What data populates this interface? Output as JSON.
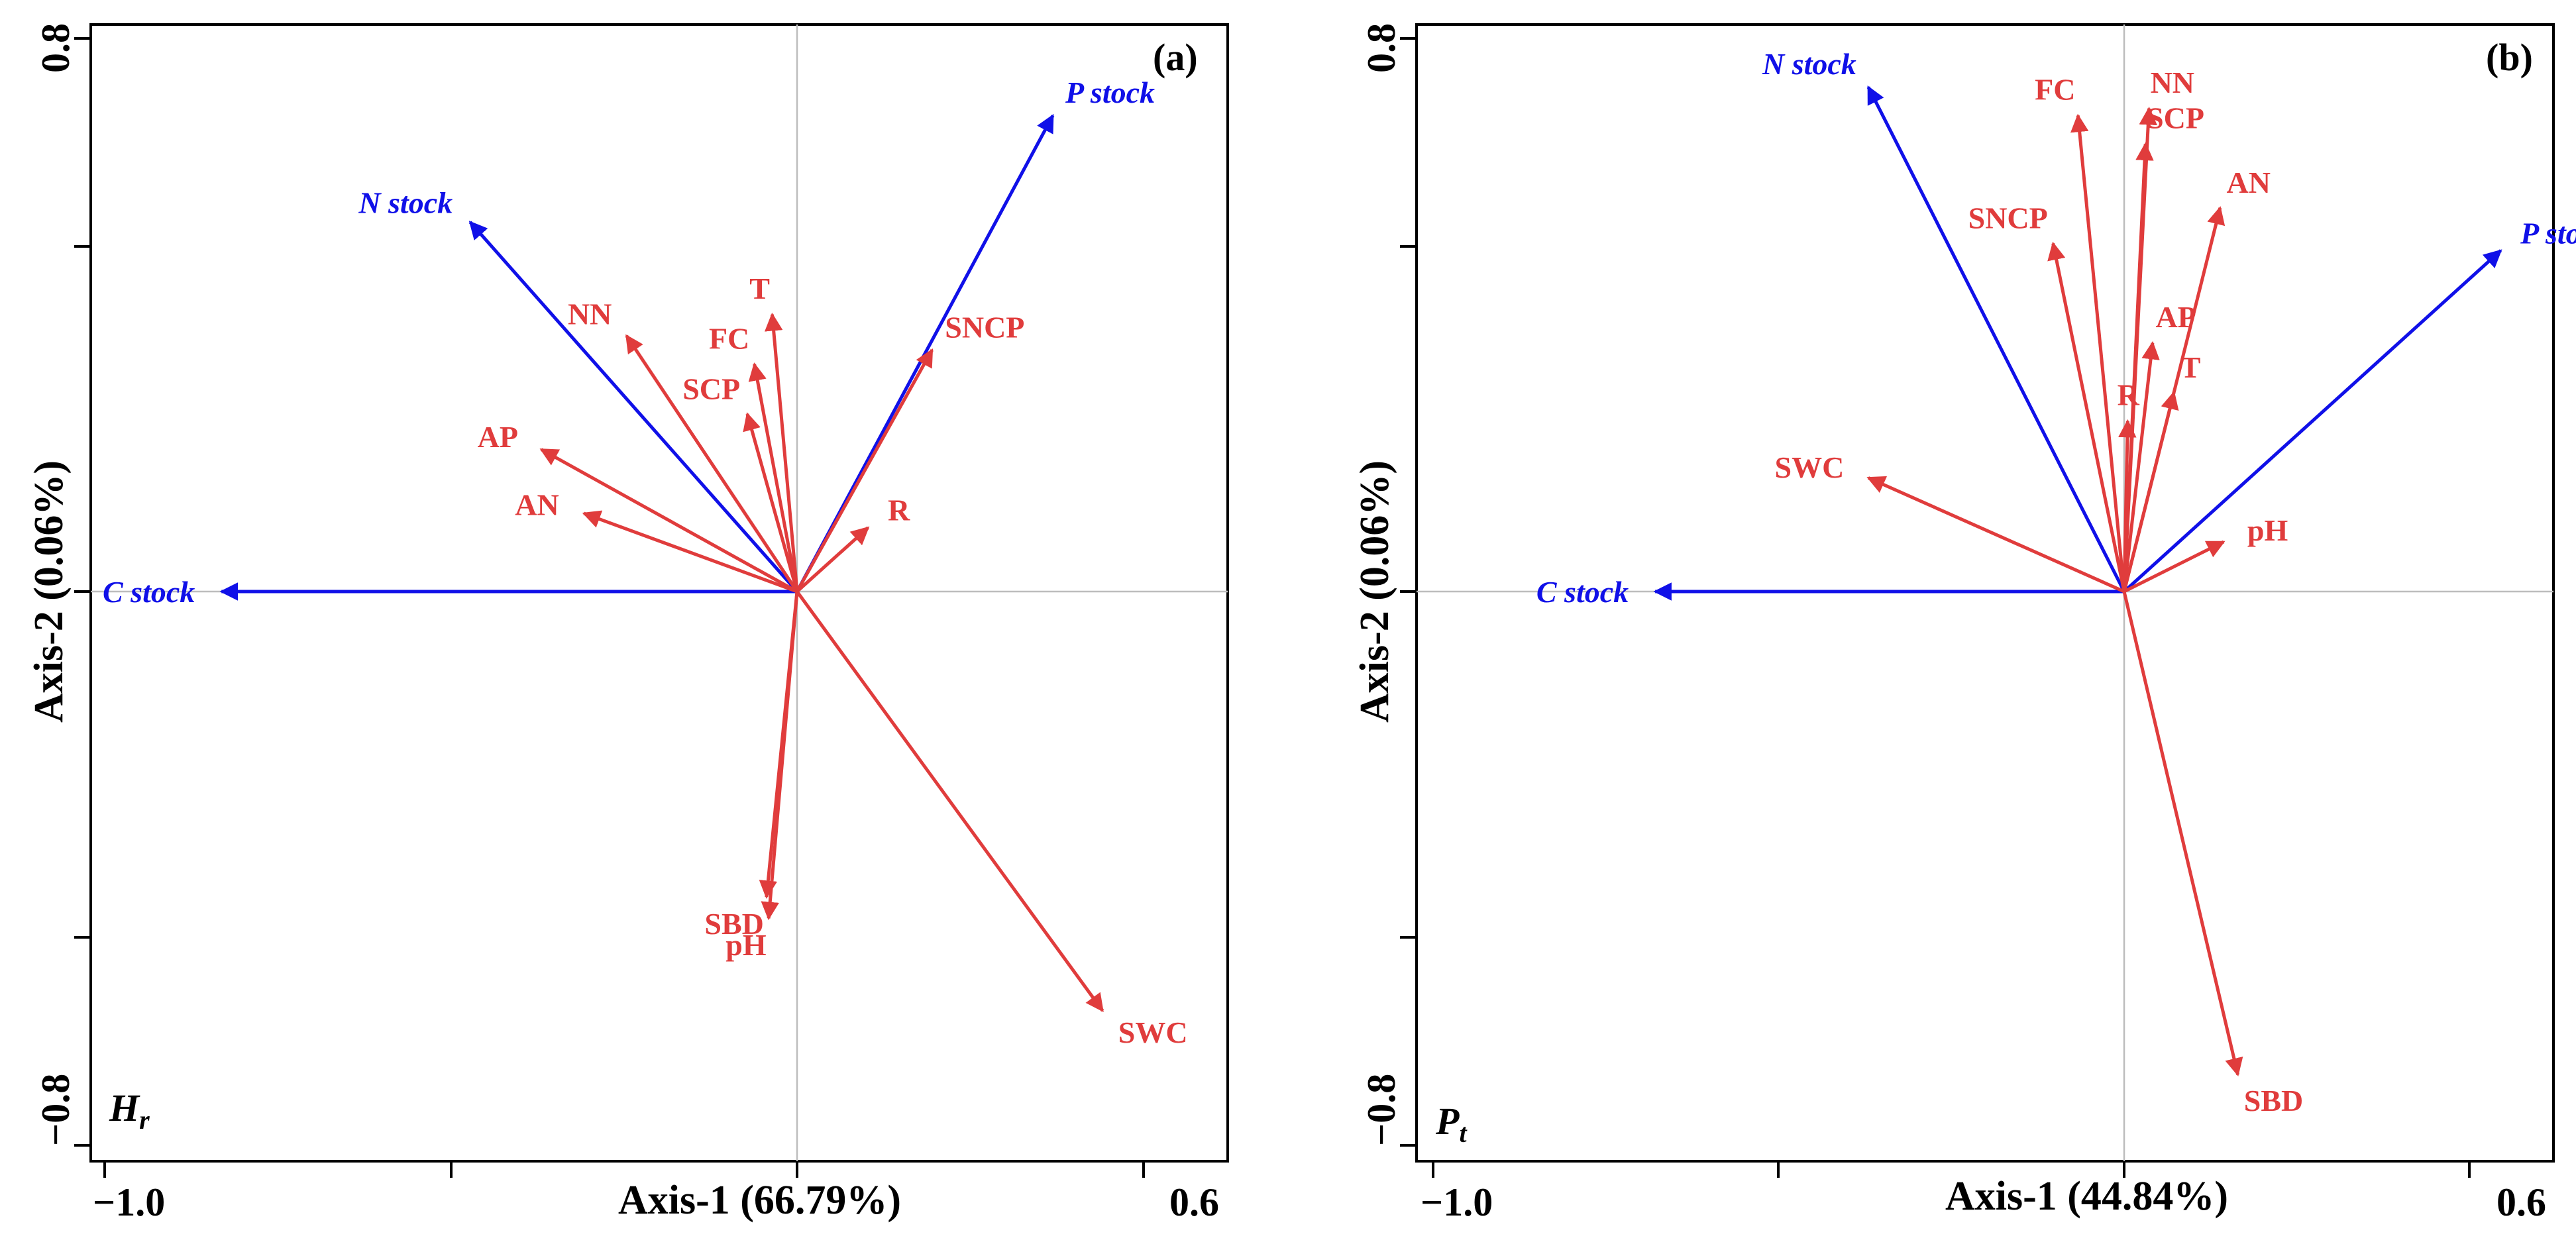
{
  "colors": {
    "response": "#1010e8",
    "explanatory": "#e03c3c",
    "frame": "#000000",
    "zero_line": "#bdbdbd"
  },
  "chart_data": [
    {
      "type": "biplot",
      "panel_label": "(a)",
      "corner_label": "H",
      "corner_label_sub": "r",
      "xlabel": "Axis-1 (66.79%)",
      "ylabel": "Axis-2 (0.06%)",
      "xlim": [
        -1.0,
        0.6
      ],
      "ylim": [
        -0.8,
        0.8
      ],
      "x_tick_labels": [
        "−1.0",
        "0.6"
      ],
      "y_tick_labels": [
        "0.8",
        "−0.8"
      ],
      "response_vectors": [
        {
          "name": "C stock",
          "x": -0.81,
          "y": 0.0
        },
        {
          "name": "N stock",
          "x": -0.46,
          "y": 0.52
        },
        {
          "name": "P stock",
          "x": 0.36,
          "y": 0.67
        }
      ],
      "explanatory_vectors": [
        {
          "name": "NN",
          "x": -0.24,
          "y": 0.36
        },
        {
          "name": "T",
          "x": -0.035,
          "y": 0.39
        },
        {
          "name": "FC",
          "x": -0.06,
          "y": 0.32
        },
        {
          "name": "SCP",
          "x": -0.07,
          "y": 0.25
        },
        {
          "name": "AP",
          "x": -0.36,
          "y": 0.2
        },
        {
          "name": "AN",
          "x": -0.3,
          "y": 0.11
        },
        {
          "name": "SNCP",
          "x": 0.19,
          "y": 0.34
        },
        {
          "name": "R",
          "x": 0.1,
          "y": 0.09
        },
        {
          "name": "SBD",
          "x": -0.043,
          "y": -0.43
        },
        {
          "name": "pH",
          "x": -0.04,
          "y": -0.46
        },
        {
          "name": "SWC",
          "x": 0.43,
          "y": -0.59
        }
      ]
    },
    {
      "type": "biplot",
      "panel_label": "(b)",
      "corner_label": "P",
      "corner_label_sub": "t",
      "xlabel": "Axis-1 (44.84%)",
      "ylabel": "Axis-2 (0.06%)",
      "xlim": [
        -1.0,
        0.6
      ],
      "ylim": [
        -0.8,
        0.8
      ],
      "x_tick_labels": [
        "−1.0",
        "0.6"
      ],
      "y_tick_labels": [
        "0.8",
        "−0.8"
      ],
      "response_vectors": [
        {
          "name": "C stock",
          "x": -0.66,
          "y": 0.0
        },
        {
          "name": "N stock",
          "x": -0.36,
          "y": 0.71
        },
        {
          "name": "P stock",
          "x": 0.53,
          "y": 0.48
        }
      ],
      "explanatory_vectors": [
        {
          "name": "FC",
          "x": -0.065,
          "y": 0.67
        },
        {
          "name": "NN",
          "x": 0.035,
          "y": 0.68
        },
        {
          "name": "SCP",
          "x": 0.03,
          "y": 0.63
        },
        {
          "name": "AN",
          "x": 0.135,
          "y": 0.54
        },
        {
          "name": "SNCP",
          "x": -0.1,
          "y": 0.49
        },
        {
          "name": "AP",
          "x": 0.04,
          "y": 0.35
        },
        {
          "name": "R",
          "x": 0.005,
          "y": 0.24
        },
        {
          "name": "T",
          "x": 0.07,
          "y": 0.28
        },
        {
          "name": "SWC",
          "x": -0.36,
          "y": 0.16
        },
        {
          "name": "pH",
          "x": 0.14,
          "y": 0.07
        },
        {
          "name": "SBD",
          "x": 0.16,
          "y": -0.68
        }
      ]
    }
  ]
}
